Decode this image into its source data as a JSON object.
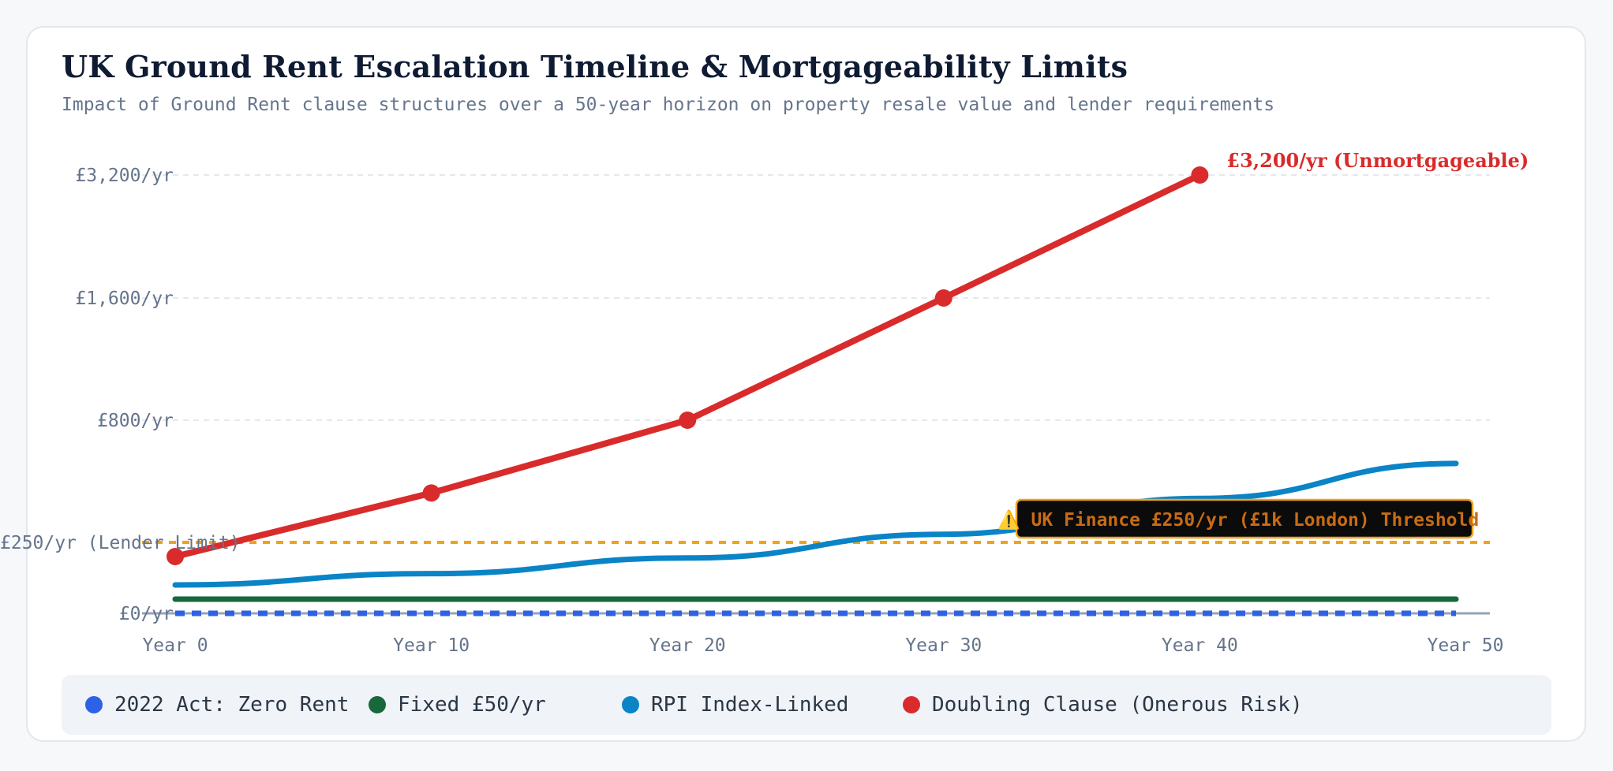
{
  "title": "UK Ground Rent Escalation Timeline & Mortgageability Limits",
  "subtitle": "Impact of Ground Rent clause structures over a 50-year horizon on property resale value and lender requirements",
  "colors": {
    "zero": "#2d62e6",
    "fixed": "#17683a",
    "rpi": "#0a84c6",
    "doubling": "#d92b2b",
    "threshold": "#f0a21b"
  },
  "chart_data": {
    "type": "line",
    "x": [
      0,
      10,
      20,
      30,
      40,
      50
    ],
    "x_tick_labels": [
      "Year 0",
      "Year 10",
      "Year 20",
      "Year 30",
      "Year 40",
      "Year 50"
    ],
    "y_ticks": [
      {
        "value": 0,
        "label": "£0/yr"
      },
      {
        "value": 250,
        "label": "£250/yr (Lender Limit)"
      },
      {
        "value": 800,
        "label": "£800/yr"
      },
      {
        "value": 1600,
        "label": "£1,600/yr"
      },
      {
        "value": 3200,
        "label": "£3,200/yr"
      }
    ],
    "y_scale": "log2 (non-linear)",
    "series": [
      {
        "name": "2022 Act: Zero Rent",
        "color_key": "zero",
        "style": "dashed",
        "x": [
          0,
          10,
          20,
          30,
          40,
          50
        ],
        "values": [
          0,
          0,
          0,
          0,
          0,
          0
        ]
      },
      {
        "name": "Fixed £50/yr",
        "color_key": "fixed",
        "style": "solid",
        "x": [
          0,
          10,
          20,
          30,
          40,
          50
        ],
        "values": [
          50,
          50,
          50,
          50,
          50,
          50
        ]
      },
      {
        "name": "RPI Index-Linked",
        "color_key": "rpi",
        "style": "solid",
        "x": [
          0,
          10,
          20,
          30,
          40,
          50
        ],
        "values": [
          100,
          140,
          195,
          270,
          380,
          530
        ]
      },
      {
        "name": "Doubling Clause (Onerous Risk)",
        "color_key": "doubling",
        "style": "solid-markers",
        "x": [
          0,
          10,
          20,
          30,
          40
        ],
        "values": [
          200,
          400,
          800,
          1600,
          3200
        ]
      }
    ],
    "threshold": {
      "value": 250,
      "label": "⚠️ UK Finance £250/yr (£1k London) Threshold"
    },
    "end_annotation": "£3,200/yr (Unmortgageable)",
    "grid": true,
    "legend_position": "bottom"
  }
}
